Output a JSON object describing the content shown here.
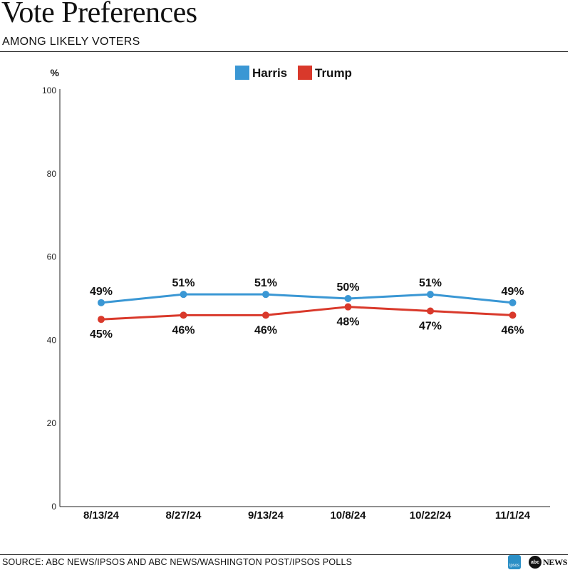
{
  "header": {
    "title": "Vote Preferences",
    "subtitle": "AMONG LIKELY VOTERS"
  },
  "footer": {
    "source": "SOURCE: ABC NEWS/IPSOS AND ABC NEWS/WASHINGTON POST/IPSOS POLLS",
    "logos": [
      "ipsos",
      "abcNEWS"
    ]
  },
  "chart_data": {
    "type": "line",
    "ylabel": "%",
    "ylim": [
      0,
      100
    ],
    "yticks": [
      0,
      20,
      40,
      60,
      80,
      100
    ],
    "categories": [
      "8/13/24",
      "8/27/24",
      "9/13/24",
      "10/8/24",
      "10/22/24",
      "11/1/24"
    ],
    "series": [
      {
        "name": "Harris",
        "color": "#3a97d4",
        "values": [
          49,
          51,
          51,
          50,
          51,
          49
        ],
        "labels": [
          "49%",
          "51%",
          "51%",
          "50%",
          "51%",
          "49%"
        ]
      },
      {
        "name": "Trump",
        "color": "#d9392b",
        "values": [
          45,
          46,
          46,
          48,
          47,
          46
        ],
        "labels": [
          "45%",
          "46%",
          "46%",
          "48%",
          "47%",
          "46%"
        ]
      }
    ],
    "legend_position": "top-center",
    "grid": false
  }
}
